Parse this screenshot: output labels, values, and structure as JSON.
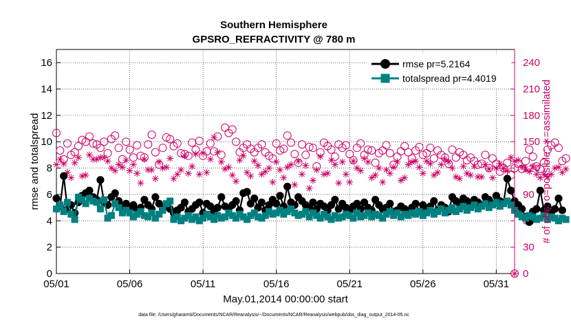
{
  "chart_data": {
    "type": "line",
    "title": "Southern Hemisphere",
    "subtitle": "GPSRO_REFRACTIVITY @ 780 m",
    "xlabel": "May.01,2014 00:00:00 start",
    "ylabel": "rmse and totalspread",
    "ylabel_right": "# of obs: o=possible; ∗=assimilated",
    "footer": "data file: /Users/gharamti/Documents/NCAR/Reanalysis/~/Documents/NCAR/Reanalysis/webpub/obs_diag_output_2014-05.nc",
    "x_ticks": [
      "05/01",
      "05/06",
      "05/11",
      "05/16",
      "05/21",
      "05/26",
      "05/31"
    ],
    "x_tick_days": [
      0,
      5,
      10,
      15,
      20,
      25,
      30
    ],
    "xlim": [
      0,
      31.25
    ],
    "y_ticks": [
      "0",
      "2",
      "4",
      "6",
      "8",
      "10",
      "12",
      "14",
      "16"
    ],
    "ylim": [
      0,
      17
    ],
    "y2_ticks": [
      "0",
      "30",
      "60",
      "90",
      "120",
      "150",
      "180",
      "210",
      "240"
    ],
    "y2lim": [
      0,
      255
    ],
    "time_step_days": 0.25,
    "legend_position": "top-right",
    "series": [
      {
        "name": "rmse",
        "legend": "rmse pr=5.2164",
        "color": "#000000",
        "marker": "circle",
        "values": [
          5.7,
          5.1,
          7.4,
          4.9,
          5.2,
          4.6,
          5.4,
          5.9,
          6.1,
          6.3,
          5.8,
          5.6,
          7.1,
          5.4,
          5.2,
          5.8,
          6.1,
          5.5,
          5.1,
          5.3,
          4.9,
          5.2,
          4.8,
          5.0,
          5.6,
          5.2,
          4.9,
          5.8,
          5.3,
          4.9,
          5.2,
          4.9,
          4.6,
          4.8,
          5.0,
          5.4,
          4.7,
          4.9,
          5.2,
          5.4,
          4.6,
          5.3,
          5.1,
          4.7,
          5.0,
          5.8,
          5.1,
          4.9,
          5.2,
          5.5,
          4.8,
          6.1,
          6.2,
          5.3,
          5.7,
          5.0,
          5.4,
          4.8,
          5.2,
          5.6,
          5.3,
          5.9,
          5.1,
          6.6,
          5.4,
          5.2,
          5.8,
          5.5,
          5.2,
          5.0,
          5.4,
          4.9,
          5.3,
          5.1,
          4.8,
          5.2,
          5.6,
          4.9,
          5.3,
          5.0,
          4.7,
          5.1,
          5.3,
          4.9,
          5.4,
          5.0,
          4.8,
          5.6,
          5.2,
          4.9,
          5.0,
          5.3,
          4.7,
          4.8,
          5.1,
          4.9,
          4.6,
          5.0,
          5.3,
          4.7,
          5.2,
          4.9,
          5.1,
          5.5,
          4.8,
          5.2,
          5.0,
          4.7,
          5.8,
          5.5,
          5.3,
          5.7,
          5.5,
          5.2,
          5.6,
          5.4,
          5.2,
          5.8,
          5.6,
          5.3,
          5.9,
          5.5,
          5.4,
          7.2,
          6.3,
          5.5,
          5.2,
          4.9,
          4.3,
          3.9,
          4.7,
          4.9,
          6.3,
          4.8,
          5.1,
          4.6,
          4.9,
          5.7,
          4.8
        ],
        "mean_value": 5.2164
      },
      {
        "name": "totalspread",
        "legend": "totalspread pr=4.4019",
        "color": "#008080",
        "marker": "square",
        "values": [
          4.9,
          5.2,
          4.7,
          5.4,
          4.5,
          4.1,
          5.8,
          5.6,
          5.3,
          5.7,
          5.5,
          5.4,
          4.9,
          5.6,
          4.2,
          4.4,
          5.3,
          5.0,
          4.6,
          4.8,
          4.6,
          4.3,
          4.5,
          4.7,
          4.4,
          4.3,
          4.6,
          4.2,
          4.5,
          4.8,
          5.3,
          5.5,
          4.1,
          4.3,
          4.0,
          4.2,
          4.4,
          4.1,
          4.3,
          4.0,
          4.2,
          4.5,
          4.3,
          4.1,
          4.4,
          4.2,
          4.3,
          4.6,
          4.4,
          4.2,
          4.5,
          4.3,
          4.1,
          4.4,
          4.6,
          4.3,
          4.2,
          4.4,
          4.7,
          4.5,
          4.6,
          4.8,
          4.5,
          4.7,
          4.9,
          4.6,
          4.4,
          4.5,
          4.7,
          4.3,
          4.6,
          4.4,
          4.2,
          4.5,
          4.3,
          4.1,
          4.4,
          4.2,
          4.3,
          4.5,
          4.4,
          4.2,
          4.6,
          4.3,
          4.4,
          4.6,
          4.3,
          4.5,
          4.4,
          4.2,
          4.5,
          4.7,
          4.4,
          4.6,
          4.3,
          4.5,
          4.4,
          4.6,
          4.5,
          4.7,
          4.4,
          4.6,
          4.8,
          4.5,
          4.7,
          4.9,
          4.6,
          4.8,
          5.0,
          4.7,
          4.9,
          5.1,
          4.8,
          5.0,
          5.2,
          4.9,
          5.1,
          5.3,
          5.0,
          5.2,
          5.4,
          5.1,
          5.3,
          5.5,
          5.2,
          4.8,
          4.5,
          4.3,
          4.2,
          4.4,
          4.3,
          4.1,
          4.2,
          4.4,
          4.1,
          4.3,
          4.2,
          4.0,
          4.2,
          4.1
        ],
        "mean_value": 4.4019
      },
      {
        "name": "possible",
        "axis": "right",
        "color": "#cc0066",
        "marker": "open-circle",
        "values": [
          160,
          140,
          130,
          148,
          135,
          138,
          145,
          152,
          150,
          156,
          148,
          147,
          143,
          150,
          137,
          153,
          157,
          143,
          130,
          150,
          141,
          132,
          146,
          134,
          132,
          147,
          158,
          138,
          124,
          143,
          155,
          153,
          145,
          148,
          137,
          136,
          134,
          149,
          141,
          151,
          134,
          139,
          148,
          139,
          156,
          135,
          166,
          160,
          164,
          150,
          138,
          143,
          147,
          142,
          138,
          143,
          147,
          138,
          134,
          131,
          148,
          140,
          142,
          157,
          149,
          136,
          126,
          147,
          135,
          144,
          143,
          122,
          138,
          149,
          145,
          141,
          133,
          147,
          143,
          146,
          136,
          129,
          143,
          148,
          135,
          141,
          140,
          126,
          137,
          140,
          146,
          137,
          124,
          133,
          139,
          145,
          138,
          131,
          140,
          144,
          135,
          137,
          143,
          131,
          140,
          135,
          132,
          125,
          141,
          132,
          138,
          135,
          129,
          132,
          128,
          124,
          125,
          135,
          120,
          131,
          125,
          116,
          120,
          126,
          112,
          120,
          125,
          119,
          128,
          141,
          133,
          122,
          119,
          126,
          141,
          146,
          149,
          143,
          128,
          131
        ],
        "empty_point": {
          "day": 31.25,
          "value": 0
        }
      },
      {
        "name": "assimilated",
        "axis": "right",
        "color": "#cc0066",
        "marker": "asterisk",
        "values": [
          124,
          130,
          125,
          115,
          109,
          126,
          132,
          111,
          112,
          135,
          130,
          130,
          132,
          132,
          128,
          120,
          117,
          124,
          121,
          129,
          117,
          124,
          114,
          103,
          130,
          118,
          118,
          108,
          127,
          120,
          121,
          131,
          108,
          113,
          118,
          134,
          114,
          122,
          136,
          113,
          137,
          115,
          130,
          155,
          138,
          127,
          119,
          121,
          112,
          105,
          129,
          134,
          115,
          111,
          128,
          123,
          113,
          116,
          120,
          104,
          127,
          118,
          109,
          121,
          124,
          101,
          128,
          113,
          123,
          97,
          106,
          118,
          133,
          113,
          114,
          129,
          124,
          103,
          127,
          113,
          104,
          128,
          120,
          117,
          131,
          127,
          109,
          112,
          120,
          104,
          118,
          114,
          121,
          127,
          106,
          109,
          124,
          127,
          128,
          121,
          114,
          128,
          125,
          112,
          115,
          124,
          130,
          127,
          120,
          110,
          108,
          122,
          114,
          112,
          122,
          110,
          110,
          124,
          119,
          109,
          120,
          125,
          120,
          117,
          132,
          128,
          129,
          121,
          119,
          116,
          122,
          113,
          109,
          113,
          110,
          113,
          120,
          121,
          115,
          119
        ]
      }
    ]
  }
}
